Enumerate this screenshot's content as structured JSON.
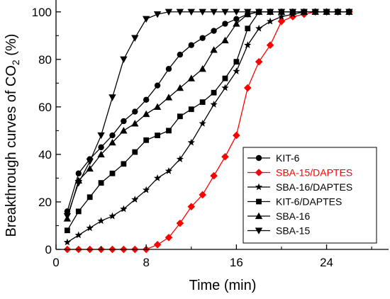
{
  "chart_data": {
    "type": "line",
    "xlabel": "Time (min)",
    "ylabel_parts": {
      "pre": "Breakthrough curves of CO",
      "sub": "2",
      "post": " (%)"
    },
    "xlim": [
      0,
      29.5
    ],
    "ylim": [
      0,
      105
    ],
    "xticks": [
      0,
      8,
      16,
      24
    ],
    "yticks": [
      0,
      20,
      40,
      60,
      80,
      100
    ],
    "legend_position": "right",
    "grid": false,
    "series": [
      {
        "name": "KIT-6",
        "color": "#000000",
        "marker": "circle",
        "x": [
          1,
          2,
          3,
          4,
          5,
          6,
          7,
          8,
          9,
          10,
          11,
          12,
          13,
          14,
          15,
          16,
          17,
          18,
          19,
          20,
          21,
          22,
          23,
          24,
          25,
          26
        ],
        "y": [
          16,
          32,
          38,
          43,
          48,
          54,
          58,
          63,
          69,
          76,
          82,
          86,
          89,
          92,
          95,
          97,
          99,
          100,
          100,
          100,
          100,
          100,
          100,
          100,
          100,
          100
        ]
      },
      {
        "name": "SBA-15/DAPTES",
        "color": "#ff0000",
        "marker": "diamond",
        "x": [
          1,
          2,
          3,
          4,
          5,
          6,
          7,
          8,
          9,
          10,
          11,
          12,
          13,
          14,
          15,
          16,
          17,
          18,
          19,
          20,
          21,
          22,
          23,
          24,
          25,
          26
        ],
        "y": [
          0,
          0,
          0,
          0,
          0,
          0,
          0,
          0,
          2,
          5,
          11,
          18,
          23,
          31,
          39,
          48,
          68,
          79,
          86,
          96,
          98,
          99,
          100,
          100,
          100,
          100
        ]
      },
      {
        "name": "SBA-16/DAPTES",
        "color": "#000000",
        "marker": "star",
        "x": [
          1,
          2,
          3,
          4,
          5,
          6,
          7,
          8,
          9,
          10,
          11,
          12,
          13,
          14,
          15,
          16,
          17,
          18,
          19,
          20,
          21,
          22,
          23,
          24,
          25,
          26
        ],
        "y": [
          3,
          6,
          9,
          12,
          14,
          17,
          21,
          25,
          30,
          33,
          38,
          45,
          53,
          61,
          68,
          75,
          86,
          93,
          96,
          98,
          99,
          100,
          100,
          100,
          100,
          100
        ]
      },
      {
        "name": "KIT-6/DAPTES",
        "color": "#000000",
        "marker": "square",
        "x": [
          1,
          2,
          3,
          4,
          5,
          6,
          7,
          8,
          9,
          10,
          11,
          12,
          13,
          14,
          15,
          16,
          17,
          18,
          19,
          20,
          21,
          22,
          23,
          24,
          25,
          26
        ],
        "y": [
          8,
          16,
          22,
          28,
          32,
          36,
          41,
          46,
          48,
          50,
          56,
          59,
          62,
          66,
          72,
          79,
          93,
          100,
          100,
          100,
          100,
          100,
          100,
          100,
          100,
          100
        ]
      },
      {
        "name": "SBA-16",
        "color": "#000000",
        "marker": "triangle-up",
        "x": [
          1,
          2,
          3,
          4,
          5,
          6,
          7,
          8,
          9,
          10,
          11,
          12,
          13,
          14,
          15,
          16,
          17,
          18,
          19,
          20,
          21,
          22,
          23,
          24,
          25,
          26
        ],
        "y": [
          13,
          29,
          34,
          40,
          45,
          50,
          53,
          57,
          60,
          64,
          68,
          72,
          76,
          84,
          88,
          95,
          99,
          100,
          100,
          100,
          100,
          100,
          100,
          100,
          100,
          100
        ]
      },
      {
        "name": "SBA-15",
        "color": "#000000",
        "marker": "triangle-down",
        "x": [
          1,
          2,
          3,
          4,
          5,
          6,
          7,
          8,
          9,
          10,
          11,
          12,
          13,
          14,
          15,
          16,
          17,
          18,
          19,
          20,
          21,
          22,
          23,
          24,
          25,
          26
        ],
        "y": [
          14,
          28,
          37,
          48,
          64,
          80,
          89,
          97,
          99,
          100,
          100,
          100,
          100,
          100,
          100,
          100,
          100,
          100,
          100,
          100,
          100,
          100,
          100,
          100,
          100,
          100
        ]
      }
    ]
  }
}
